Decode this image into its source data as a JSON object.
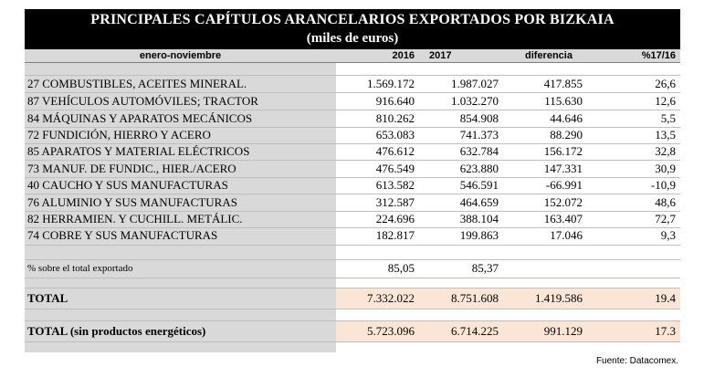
{
  "title": {
    "line1": "PRINCIPALES CAPÍTULOS ARANCELARIOS EXPORTADOS POR BIZKAIA",
    "line2": "(miles de euros)"
  },
  "headers": {
    "period": "enero-noviembre",
    "y2016": "2016",
    "y2017": "2017",
    "diff": "diferencia",
    "pct": "%17/16"
  },
  "rows": [
    {
      "label": "27 COMBUSTIBLES, ACEITES MINERAL.",
      "v2016": "1.569.172",
      "v2017": "1.987.027",
      "diff": "417.855",
      "pct": "26,6"
    },
    {
      "label": "87 VEHÍCULOS AUTOMÓVILES; TRACTOR",
      "v2016": "916.640",
      "v2017": "1.032.270",
      "diff": "115.630",
      "pct": "12,6"
    },
    {
      "label": "84 MÁQUINAS Y APARATOS MECÁNICOS",
      "v2016": "810.262",
      "v2017": "854.908",
      "diff": "44.646",
      "pct": "5,5"
    },
    {
      "label": "72 FUNDICIÓN, HIERRO Y ACERO",
      "v2016": "653.083",
      "v2017": "741.373",
      "diff": "88.290",
      "pct": "13,5"
    },
    {
      "label": "85 APARATOS Y MATERIAL ELÉCTRICOS",
      "v2016": "476.612",
      "v2017": "632.784",
      "diff": "156.172",
      "pct": "32,8"
    },
    {
      "label": "73 MANUF. DE FUNDIC., HIER./ACERO",
      "v2016": "476.549",
      "v2017": "623.880",
      "diff": "147.331",
      "pct": "30,9"
    },
    {
      "label": "40 CAUCHO Y SUS MANUFACTURAS",
      "v2016": "613.582",
      "v2017": "546.591",
      "diff": "-66.991",
      "pct": "-10,9"
    },
    {
      "label": "76 ALUMINIO Y SUS MANUFACTURAS",
      "v2016": "312.587",
      "v2017": "464.659",
      "diff": "152.072",
      "pct": "48,6"
    },
    {
      "label": "82 HERRAMIEN. Y CUCHILL. METÁLIC.",
      "v2016": "224.696",
      "v2017": "388.104",
      "diff": "163.407",
      "pct": "72,7"
    },
    {
      "label": "74 COBRE Y SUS MANUFACTURAS",
      "v2016": "182.817",
      "v2017": "199.863",
      "diff": "17.046",
      "pct": "9,3"
    }
  ],
  "share": {
    "label": "% sobre el total exportado",
    "v2016": "85,05",
    "v2017": "85,37"
  },
  "total": {
    "label": "TOTAL",
    "v2016": "7.332.022",
    "v2017": "8.751.608",
    "diff": "1.419.586",
    "pct": "19.4"
  },
  "total_non_energy": {
    "label": "TOTAL (sin productos energéticos)",
    "v2016": "5.723.096",
    "v2017": "6.714.225",
    "diff": "991.129",
    "pct": "17.3"
  },
  "source": "Fuente: Datacomex."
}
